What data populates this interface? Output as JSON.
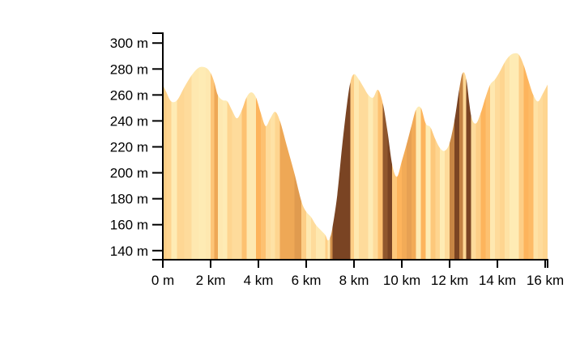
{
  "chart_data": {
    "type": "area",
    "title": "",
    "xlabel": "",
    "ylabel": "",
    "x_unit": "km",
    "y_unit": "m",
    "xlim": [
      0,
      16.1
    ],
    "ylim": [
      133,
      307
    ],
    "grid": false,
    "x_ticks": [
      {
        "value": 0,
        "label": "0 m"
      },
      {
        "value": 2,
        "label": "2 km"
      },
      {
        "value": 4,
        "label": "4 km"
      },
      {
        "value": 6,
        "label": "6 km"
      },
      {
        "value": 8,
        "label": "8 km"
      },
      {
        "value": 10,
        "label": "10 km"
      },
      {
        "value": 12,
        "label": "12 km"
      },
      {
        "value": 14,
        "label": "14 km"
      },
      {
        "value": 16,
        "label": "16 km"
      }
    ],
    "y_ticks": [
      {
        "value": 140,
        "label": "140 m"
      },
      {
        "value": 160,
        "label": "160 m"
      },
      {
        "value": 180,
        "label": "180 m"
      },
      {
        "value": 200,
        "label": "200 m"
      },
      {
        "value": 220,
        "label": "220 m"
      },
      {
        "value": 240,
        "label": "240 m"
      },
      {
        "value": 260,
        "label": "260 m"
      },
      {
        "value": 280,
        "label": "280 m"
      },
      {
        "value": 300,
        "label": "300 m"
      }
    ],
    "series": [
      {
        "x": [
          0,
          0.15,
          0.35,
          0.6,
          0.9,
          1.2,
          1.5,
          1.8,
          2.0,
          2.15,
          2.3,
          2.5,
          2.7,
          2.9,
          3.1,
          3.3,
          3.5,
          3.7,
          3.9,
          4.1,
          4.3,
          4.5,
          4.7,
          4.9,
          5.2,
          5.5,
          5.8,
          6.0,
          6.2,
          6.4,
          6.6,
          6.8,
          6.9,
          7.0,
          7.1,
          7.3,
          7.5,
          7.7,
          7.85,
          8.0,
          8.2,
          8.4,
          8.6,
          8.8,
          9.0,
          9.2,
          9.4,
          9.6,
          9.8,
          10.0,
          10.2,
          10.4,
          10.6,
          10.8,
          11.0,
          11.2,
          11.4,
          11.6,
          11.8,
          12.0,
          12.2,
          12.4,
          12.55,
          12.7,
          12.9,
          13.1,
          13.3,
          13.5,
          13.7,
          13.9,
          14.1,
          14.3,
          14.5,
          14.7,
          14.9,
          15.1,
          15.3,
          15.5,
          15.7,
          15.9,
          16.1
        ],
        "y": [
          268,
          262,
          255,
          256,
          266,
          275,
          281,
          281,
          277,
          270,
          260,
          256,
          255,
          248,
          242,
          248,
          258,
          262,
          258,
          246,
          236,
          242,
          247,
          240,
          220,
          200,
          178,
          170,
          166,
          160,
          156,
          152,
          148,
          150,
          158,
          183,
          220,
          252,
          270,
          276,
          272,
          266,
          260,
          258,
          264,
          254,
          232,
          206,
          197,
          209,
          222,
          236,
          249,
          250,
          238,
          235,
          226,
          219,
          217,
          223,
          240,
          264,
          277,
          272,
          244,
          238,
          246,
          258,
          268,
          272,
          278,
          285,
          290,
          292,
          291,
          283,
          271,
          260,
          255,
          261,
          268
        ],
        "fill": "gradient"
      }
    ],
    "colors": {
      "light": "#feebb4",
      "medium": "#fdb45c",
      "dark": "#7a4423"
    }
  }
}
